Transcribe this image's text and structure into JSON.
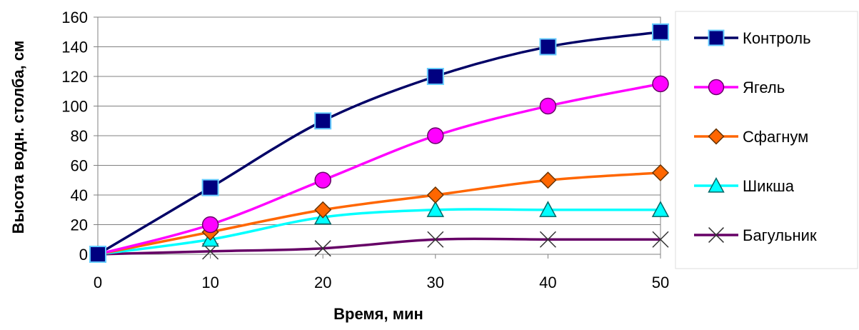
{
  "chart_data": {
    "type": "line",
    "xlabel": "Время, мин",
    "ylabel": "Высота водн. столба, см",
    "x": [
      0,
      10,
      20,
      30,
      40,
      50
    ],
    "xlim": [
      0,
      50
    ],
    "ylim": [
      0,
      160
    ],
    "xticks": [
      "0",
      "10",
      "20",
      "30",
      "40",
      "50"
    ],
    "yticks": [
      "0",
      "20",
      "40",
      "60",
      "80",
      "100",
      "120",
      "140",
      "160"
    ],
    "grid": "horizontal",
    "legend_position": "right",
    "series": [
      {
        "name": "Контроль",
        "marker": "square",
        "color": "#000066",
        "marker_fill": "#000080",
        "values": [
          0,
          45,
          90,
          120,
          140,
          150
        ]
      },
      {
        "name": "Ягель",
        "marker": "circle",
        "color": "#ff00ff",
        "marker_fill": "#ff00ff",
        "values": [
          0,
          20,
          50,
          80,
          100,
          115
        ]
      },
      {
        "name": "Сфагнум",
        "marker": "diamond",
        "color": "#ff6600",
        "marker_fill": "#ff6600",
        "values": [
          0,
          15,
          30,
          40,
          50,
          55
        ]
      },
      {
        "name": "Шикша",
        "marker": "triangle",
        "color": "#00ffff",
        "marker_fill": "#00ffff",
        "values": [
          0,
          10,
          25,
          30,
          30,
          30
        ]
      },
      {
        "name": "Багульник",
        "marker": "x",
        "color": "#660066",
        "marker_fill": "#660066",
        "values": [
          0,
          2,
          4,
          10,
          10,
          10
        ]
      }
    ]
  }
}
